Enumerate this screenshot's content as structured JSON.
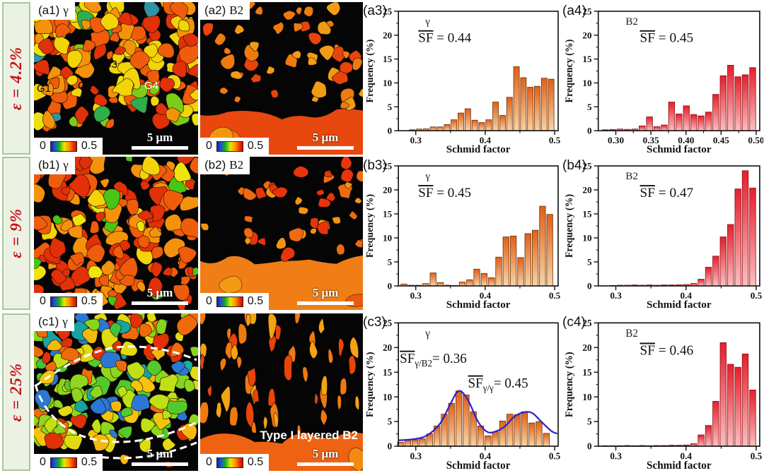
{
  "figure": {
    "rows": [
      {
        "id": "a",
        "strain_label": "ε = 4.2%"
      },
      {
        "id": "b",
        "strain_label": "ε = 9%"
      },
      {
        "id": "c",
        "strain_label": "ε = 25%"
      }
    ],
    "colors": {
      "strain_text": "#c81018",
      "row_box_bg": "#ebf1e3",
      "row_box_border": "#a9c796",
      "gamma_bar_top": "#e06018",
      "gamma_bar_bottom": "#f9d3a4",
      "b2_bar_top": "#e61e2c",
      "b2_bar_bottom": "#fbc0c0",
      "curve_blue": "#2a22cc"
    }
  },
  "maps": [
    {
      "panel": "(a1)",
      "phase": "γ",
      "scale_bar": "5 μm",
      "legend_min": "0",
      "legend_max": "0.5",
      "grain_marks": [
        "G1",
        "G2",
        "G3",
        "G4"
      ]
    },
    {
      "panel": "(a2)",
      "phase": "B2",
      "scale_bar": "5 μm",
      "legend_min": "0",
      "legend_max": "0.5"
    },
    {
      "panel": "(b1)",
      "phase": "γ",
      "scale_bar": "5 μm",
      "legend_min": "0",
      "legend_max": "0.5"
    },
    {
      "panel": "(b2)",
      "phase": "B2",
      "scale_bar": "5 μm",
      "legend_min": "0",
      "legend_max": "0.5"
    },
    {
      "panel": "(c1)",
      "phase": "γ",
      "scale_bar": "5 μm",
      "legend_min": "0",
      "legend_max": "0.5"
    },
    {
      "panel": "",
      "phase": "",
      "scale_bar": "5 μm",
      "legend_min": "0",
      "legend_max": "0.5",
      "caption": "Type I layered B2"
    }
  ],
  "chart_data": [
    {
      "type": "bar",
      "panel": "(a3)",
      "series_label": "γ",
      "xlabel": "Schmid factor",
      "ylabel": "Frequency (%)",
      "xlim": [
        0.275,
        0.505
      ],
      "ylim": [
        0,
        25
      ],
      "yticks": [
        0,
        5,
        10,
        15,
        20,
        25
      ],
      "xticks": [
        "0.3",
        "0.4",
        "0.5"
      ],
      "x_start": 0.295,
      "dx": 0.01,
      "values": [
        0.2,
        0.35,
        0.4,
        0.8,
        0.8,
        1.3,
        2.3,
        3.7,
        4.6,
        2.2,
        1.7,
        2.3,
        6.0,
        3.2,
        7.0,
        13.4,
        11.1,
        9.1,
        9.3,
        11.0,
        10.8
      ],
      "bar_top": "#e06018",
      "bar_bottom": "#f9d3a4",
      "bar_stroke": "#6b3208",
      "annotations": [
        {
          "x": 78,
          "y": 57,
          "pre": "SF",
          "sub": "",
          "post": " = 0.44"
        }
      ]
    },
    {
      "type": "bar",
      "panel": "(a4)",
      "series_label": "B2",
      "xlabel": "Schmid factor",
      "ylabel": "Frequency (%)",
      "xlim": [
        0.275,
        0.505
      ],
      "ylim": [
        0,
        25
      ],
      "yticks": [
        0,
        5,
        10,
        15,
        20,
        25
      ],
      "xticks": [
        "0.30",
        "0.35",
        "0.40",
        "0.45",
        "0.50"
      ],
      "x_start": 0.285,
      "dx": 0.0105,
      "values": [
        0.2,
        0.25,
        0.35,
        0.3,
        0.35,
        1.0,
        2.9,
        0.85,
        1.2,
        6.0,
        3.5,
        5.2,
        3.4,
        3.1,
        3.9,
        7.6,
        11.5,
        13.7,
        11.3,
        11.7,
        13.2
      ],
      "bar_top": "#e61e2c",
      "bar_bottom": "#fbc0c0",
      "bar_stroke": "#8c0f16",
      "annotations": [
        {
          "x": 108,
          "y": 57,
          "pre": "SF",
          "sub": "",
          "post": " = 0.45"
        }
      ]
    },
    {
      "type": "bar",
      "panel": "(b3)",
      "series_label": "γ",
      "xlabel": "Schmid factor",
      "ylabel": "Frequency (%)",
      "xlim": [
        0.275,
        0.505
      ],
      "ylim": [
        0,
        25
      ],
      "yticks": [
        0,
        5,
        10,
        15,
        20,
        25
      ],
      "xticks": [
        "0.3",
        "0.4",
        "0.5"
      ],
      "x_start": 0.283,
      "dx": 0.0105,
      "values": [
        0.4,
        0.15,
        0.15,
        0.5,
        2.7,
        0.7,
        0.15,
        0.1,
        0.8,
        1.3,
        3.5,
        2.6,
        1.7,
        6.0,
        10.2,
        10.4,
        5.9,
        10.9,
        11.6,
        16.6,
        14.9
      ],
      "bar_top": "#e06018",
      "bar_bottom": "#f9d3a4",
      "bar_stroke": "#6b3208",
      "annotations": [
        {
          "x": 78,
          "y": 57,
          "pre": "SF",
          "sub": "",
          "post": " = 0.45"
        }
      ]
    },
    {
      "type": "bar",
      "panel": "(b4)",
      "series_label": "B2",
      "xlabel": "Schmid factor",
      "ylabel": "Frequency (%)",
      "xlim": [
        0.275,
        0.505
      ],
      "ylim": [
        0,
        25
      ],
      "yticks": [
        0,
        5,
        10,
        15,
        20,
        25
      ],
      "xticks": [
        "0.3",
        "0.4",
        "0.5"
      ],
      "x_start": 0.285,
      "dx": 0.0105,
      "values": [
        0.05,
        0.1,
        0.15,
        0.15,
        0.2,
        0.15,
        0.2,
        0.15,
        0.2,
        0.2,
        0.25,
        0.3,
        0.5,
        1.4,
        3.9,
        6.2,
        10.2,
        12.8,
        20.2,
        24.0,
        20.4
      ],
      "bar_top": "#e61e2c",
      "bar_bottom": "#fbc0c0",
      "bar_stroke": "#8c0f16",
      "annotations": [
        {
          "x": 108,
          "y": 57,
          "pre": "SF",
          "sub": "",
          "post": " = 0.47"
        }
      ]
    },
    {
      "type": "bar",
      "panel": "(c3)",
      "series_label": "γ",
      "xlabel": "Schmid factor",
      "ylabel": "Frequency (%)",
      "xlim": [
        0.275,
        0.505
      ],
      "ylim": [
        0,
        25
      ],
      "yticks": [
        0,
        5,
        10,
        15,
        20,
        25
      ],
      "xticks": [
        "0.3",
        "0.4",
        "0.5"
      ],
      "x_start": 0.278,
      "dx": 0.0105,
      "values": [
        0.8,
        1.2,
        1.3,
        1.5,
        2.5,
        4.1,
        6.5,
        8.7,
        11.2,
        10.4,
        7.0,
        4.1,
        2.1,
        2.9,
        5.1,
        6.5,
        6.4,
        7.0,
        4.7,
        5.0,
        2.6
      ],
      "bar_top": "#e06018",
      "bar_bottom": "#f9d3a4",
      "bar_stroke": "#6b3208",
      "curve": [
        [
          0.276,
          1.2
        ],
        [
          0.295,
          1.4
        ],
        [
          0.315,
          2.1
        ],
        [
          0.335,
          4.6
        ],
        [
          0.35,
          8.6
        ],
        [
          0.362,
          11.2
        ],
        [
          0.375,
          9.4
        ],
        [
          0.39,
          4.9
        ],
        [
          0.403,
          2.9
        ],
        [
          0.415,
          3.0
        ],
        [
          0.428,
          4.0
        ],
        [
          0.442,
          6.0
        ],
        [
          0.456,
          6.9
        ],
        [
          0.468,
          6.7
        ],
        [
          0.48,
          5.1
        ],
        [
          0.495,
          3.1
        ],
        [
          0.503,
          2.6
        ]
      ],
      "curve_color": "#2a22cc",
      "annotations": [
        {
          "x": 52,
          "y": 68,
          "pre": "SF",
          "sub": "γ/B2",
          "post": "= 0.36"
        },
        {
          "x": 148,
          "y": 102,
          "pre": "SF",
          "sub": "γ/γ",
          "post": "= 0.45"
        }
      ]
    },
    {
      "type": "bar",
      "panel": "(c4)",
      "series_label": "B2",
      "xlabel": "Schmid factor",
      "ylabel": "Frequency (%)",
      "xlim": [
        0.275,
        0.505
      ],
      "ylim": [
        0,
        25
      ],
      "yticks": [
        0,
        5,
        10,
        15,
        20,
        25
      ],
      "xticks": [
        "0.3",
        "0.4",
        "0.5"
      ],
      "x_start": 0.285,
      "dx": 0.0105,
      "values": [
        0.1,
        0.1,
        0.1,
        0.15,
        0.1,
        0.15,
        0.1,
        0.15,
        0.15,
        0.2,
        0.2,
        0.25,
        0.5,
        2.3,
        4.2,
        9.1,
        21.0,
        16.6,
        16.0,
        18.7,
        11.4
      ],
      "bar_top": "#e61e2c",
      "bar_bottom": "#fbc0c0",
      "bar_stroke": "#8c0f16",
      "annotations": [
        {
          "x": 108,
          "y": 57,
          "pre": "SF",
          "sub": "",
          "post": " = 0.46"
        }
      ]
    }
  ]
}
